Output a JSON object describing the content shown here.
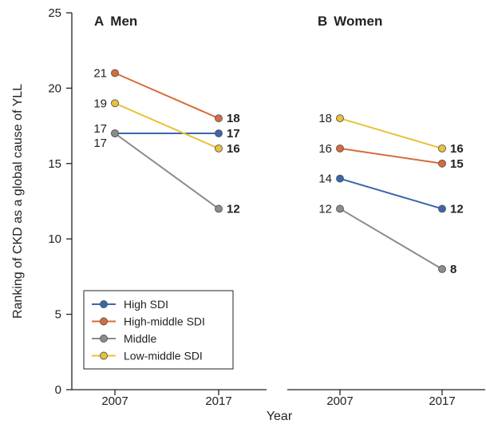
{
  "chart_data": {
    "type": "line",
    "ylabel": "Ranking of CKD as a global cause of YLL",
    "xlabel": "Year",
    "ylim": [
      0,
      25
    ],
    "yticks": [
      0,
      5,
      10,
      15,
      20,
      25
    ],
    "x": [
      "2007",
      "2017"
    ],
    "grid": false,
    "legend": {
      "placement": "bottom-left",
      "entries": [
        "High SDI",
        "High-middle SDI",
        "Middle",
        "Low-middle SDI"
      ]
    },
    "colors": {
      "High SDI": "#3a66ad",
      "High-middle SDI": "#d96b3a",
      "Middle": "#8c8c8c",
      "Low-middle SDI": "#e8c23a"
    },
    "panels": [
      {
        "letter": "A",
        "title": "Men",
        "series": [
          {
            "name": "High SDI",
            "values": [
              17,
              17
            ]
          },
          {
            "name": "High-middle SDI",
            "values": [
              21,
              18
            ]
          },
          {
            "name": "Middle",
            "values": [
              17,
              12
            ]
          },
          {
            "name": "Low-middle SDI",
            "values": [
              19,
              16
            ]
          }
        ]
      },
      {
        "letter": "B",
        "title": "Women",
        "series": [
          {
            "name": "High SDI",
            "values": [
              14,
              12
            ]
          },
          {
            "name": "High-middle SDI",
            "values": [
              16,
              15
            ]
          },
          {
            "name": "Middle",
            "values": [
              12,
              8
            ]
          },
          {
            "name": "Low-middle SDI",
            "values": [
              18,
              16
            ]
          }
        ]
      }
    ]
  }
}
